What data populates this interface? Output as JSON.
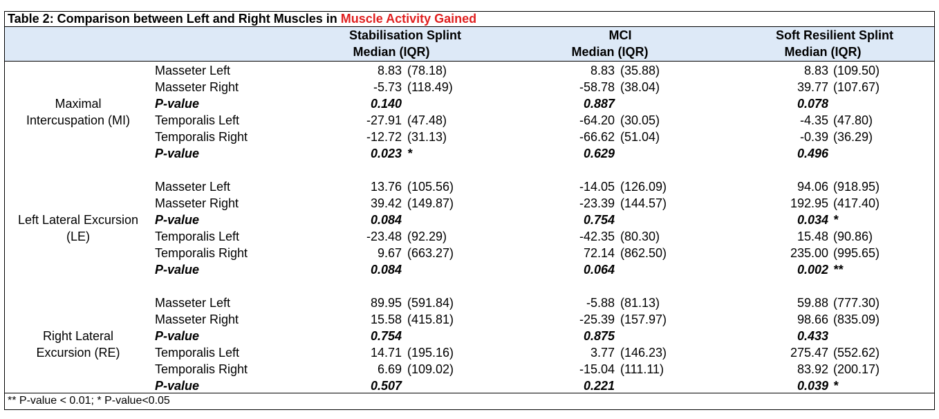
{
  "title": {
    "prefix": "Table 2: Comparison between Left and Right Muscles in ",
    "highlight": "Muscle Activity Gained"
  },
  "columns": [
    {
      "name": "Stabilisation Splint",
      "sub": "Median  (IQR)"
    },
    {
      "name": "MCI",
      "sub": "Median  (IQR)"
    },
    {
      "name": "Soft Resilient Splint",
      "sub": "Median  (IQR)"
    }
  ],
  "groups": [
    {
      "label_lines": [
        "Maximal",
        "Intercuspation (MI)"
      ],
      "rows": [
        {
          "label": "Masseter Left",
          "p": false,
          "cells": [
            {
              "v": "8.83",
              "iqr": "(78.18)"
            },
            {
              "v": "8.83",
              "iqr": "(35.88)"
            },
            {
              "v": "8.83",
              "iqr": "(109.50)"
            }
          ]
        },
        {
          "label": "Masseter Right",
          "p": false,
          "cells": [
            {
              "v": "-5.73",
              "iqr": "(118.49)"
            },
            {
              "v": "-58.78",
              "iqr": "(38.04)"
            },
            {
              "v": "39.77",
              "iqr": "(107.67)"
            }
          ]
        },
        {
          "label": "P-value",
          "p": true,
          "cells": [
            {
              "v": "0.140",
              "iqr": ""
            },
            {
              "v": "0.887",
              "iqr": ""
            },
            {
              "v": "0.078",
              "iqr": ""
            }
          ]
        },
        {
          "label": "Temporalis Left",
          "p": false,
          "cells": [
            {
              "v": "-27.91",
              "iqr": "(47.48)"
            },
            {
              "v": "-64.20",
              "iqr": "(30.05)"
            },
            {
              "v": "-4.35",
              "iqr": "(47.80)"
            }
          ]
        },
        {
          "label": "Temporalis Right",
          "p": false,
          "cells": [
            {
              "v": "-12.72",
              "iqr": "(31.13)"
            },
            {
              "v": "-66.62",
              "iqr": "(51.04)"
            },
            {
              "v": "-0.39",
              "iqr": "(36.29)"
            }
          ]
        },
        {
          "label": "P-value",
          "p": true,
          "cells": [
            {
              "v": "0.023",
              "iqr": "*"
            },
            {
              "v": "0.629",
              "iqr": ""
            },
            {
              "v": "0.496",
              "iqr": ""
            }
          ]
        }
      ]
    },
    {
      "label_lines": [
        "Left Lateral Excursion",
        "(LE)"
      ],
      "rows": [
        {
          "label": "Masseter Left",
          "p": false,
          "cells": [
            {
              "v": "13.76",
              "iqr": "(105.56)"
            },
            {
              "v": "-14.05",
              "iqr": "(126.09)"
            },
            {
              "v": "94.06",
              "iqr": "(918.95)"
            }
          ]
        },
        {
          "label": "Masseter Right",
          "p": false,
          "cells": [
            {
              "v": "39.42",
              "iqr": "(149.87)"
            },
            {
              "v": "-23.39",
              "iqr": "(144.57)"
            },
            {
              "v": "192.95",
              "iqr": "(417.40)"
            }
          ]
        },
        {
          "label": "P-value",
          "p": true,
          "cells": [
            {
              "v": "0.084",
              "iqr": ""
            },
            {
              "v": "0.754",
              "iqr": ""
            },
            {
              "v": "0.034",
              "iqr": "*"
            }
          ]
        },
        {
          "label": "Temporalis Left",
          "p": false,
          "cells": [
            {
              "v": "-23.48",
              "iqr": "(92.29)"
            },
            {
              "v": "-42.35",
              "iqr": "(80.30)"
            },
            {
              "v": "15.48",
              "iqr": "(90.86)"
            }
          ]
        },
        {
          "label": "Temporalis Right",
          "p": false,
          "cells": [
            {
              "v": "9.67",
              "iqr": "(663.27)"
            },
            {
              "v": "72.14",
              "iqr": "(862.50)"
            },
            {
              "v": "235.00",
              "iqr": "(995.65)"
            }
          ]
        },
        {
          "label": "P-value",
          "p": true,
          "cells": [
            {
              "v": "0.084",
              "iqr": ""
            },
            {
              "v": "0.064",
              "iqr": ""
            },
            {
              "v": "0.002",
              "iqr": "**"
            }
          ]
        }
      ]
    },
    {
      "label_lines": [
        "Right Lateral",
        "Excursion (RE)"
      ],
      "rows": [
        {
          "label": "Masseter Left",
          "p": false,
          "cells": [
            {
              "v": "89.95",
              "iqr": "(591.84)"
            },
            {
              "v": "-5.88",
              "iqr": "(81.13)"
            },
            {
              "v": "59.88",
              "iqr": "(777.30)"
            }
          ]
        },
        {
          "label": "Masseter Right",
          "p": false,
          "cells": [
            {
              "v": "15.58",
              "iqr": "(415.81)"
            },
            {
              "v": "-25.39",
              "iqr": "(157.97)"
            },
            {
              "v": "98.66",
              "iqr": "(835.09)"
            }
          ]
        },
        {
          "label": "P-value",
          "p": true,
          "cells": [
            {
              "v": "0.754",
              "iqr": ""
            },
            {
              "v": "0.875",
              "iqr": ""
            },
            {
              "v": "0.433",
              "iqr": ""
            }
          ]
        },
        {
          "label": "Temporalis Left",
          "p": false,
          "cells": [
            {
              "v": "14.71",
              "iqr": "(195.16)"
            },
            {
              "v": "3.77",
              "iqr": "(146.23)"
            },
            {
              "v": "275.47",
              "iqr": "(552.62)"
            }
          ]
        },
        {
          "label": "Temporalis Right",
          "p": false,
          "cells": [
            {
              "v": "6.69",
              "iqr": "(109.02)"
            },
            {
              "v": "-15.04",
              "iqr": "(111.11)"
            },
            {
              "v": "83.92",
              "iqr": "(200.17)"
            }
          ]
        },
        {
          "label": "P-value",
          "p": true,
          "cells": [
            {
              "v": "0.507",
              "iqr": ""
            },
            {
              "v": "0.221",
              "iqr": ""
            },
            {
              "v": "0.039",
              "iqr": "*"
            }
          ]
        }
      ]
    }
  ],
  "footnote": "** P-value < 0.01; * P-value<0.05",
  "colors": {
    "highlight": "#e02020",
    "header_bg": "#dde9f7"
  }
}
